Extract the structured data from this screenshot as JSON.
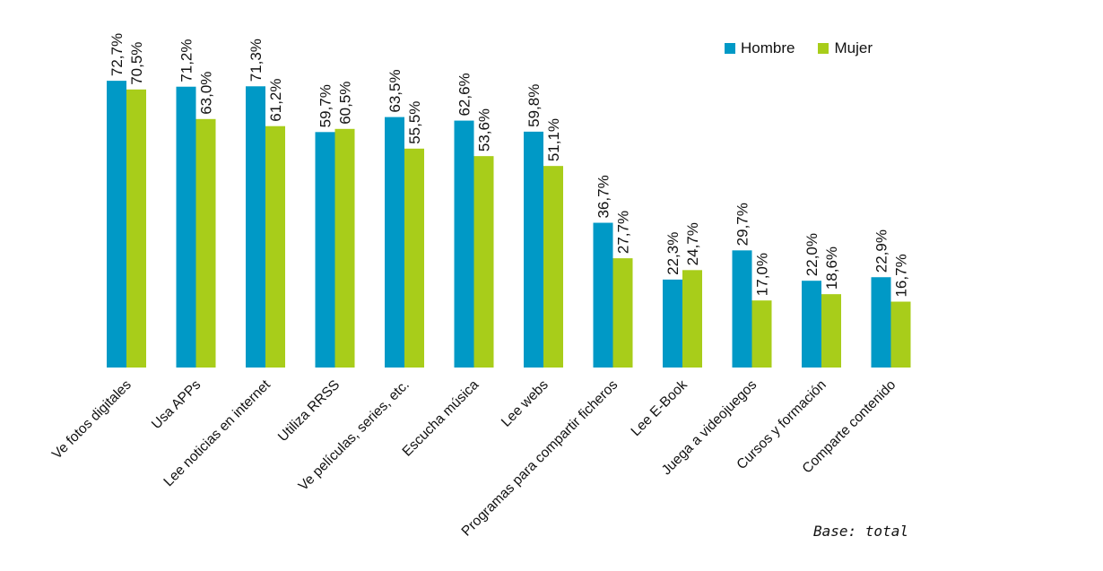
{
  "chart_data": {
    "type": "bar",
    "categories": [
      "Ve fotos digitales",
      "Usa APPs",
      "Lee noticias en internet",
      "Utiliza RRSS",
      "Ve películas, series, etc.",
      "Escucha música",
      "Lee webs",
      "Programas para compartir ficheros",
      "Lee E-Book",
      "Juega a videojuegos",
      "Cursos y formación",
      "Comparte contenido"
    ],
    "series": [
      {
        "name": "Hombre",
        "color": "#0099c6",
        "values": [
          72.7,
          71.2,
          71.3,
          59.7,
          63.5,
          62.6,
          59.8,
          36.7,
          22.3,
          29.7,
          22.0,
          22.9
        ],
        "labels": [
          "72,7%",
          "71,2%",
          "71,3%",
          "59,7%",
          "63,5%",
          "62,6%",
          "59,8%",
          "36,7%",
          "22,3%",
          "29,7%",
          "22,0%",
          "22,9%"
        ]
      },
      {
        "name": "Mujer",
        "color": "#a8cd1a",
        "values": [
          70.5,
          63.0,
          61.2,
          60.5,
          55.5,
          53.6,
          51.1,
          27.7,
          24.7,
          17.0,
          18.6,
          16.7
        ],
        "labels": [
          "70,5%",
          "63,0%",
          "61,2%",
          "60,5%",
          "55,5%",
          "53,6%",
          "51,1%",
          "27,7%",
          "24,7%",
          "17,0%",
          "18,6%",
          "16,7%"
        ]
      }
    ],
    "ylim": [
      0,
      100
    ],
    "grid": false,
    "legend_position": "top-right"
  },
  "legend": {
    "hombre": "Hombre",
    "mujer": "Mujer"
  },
  "footnote": "Base: total"
}
